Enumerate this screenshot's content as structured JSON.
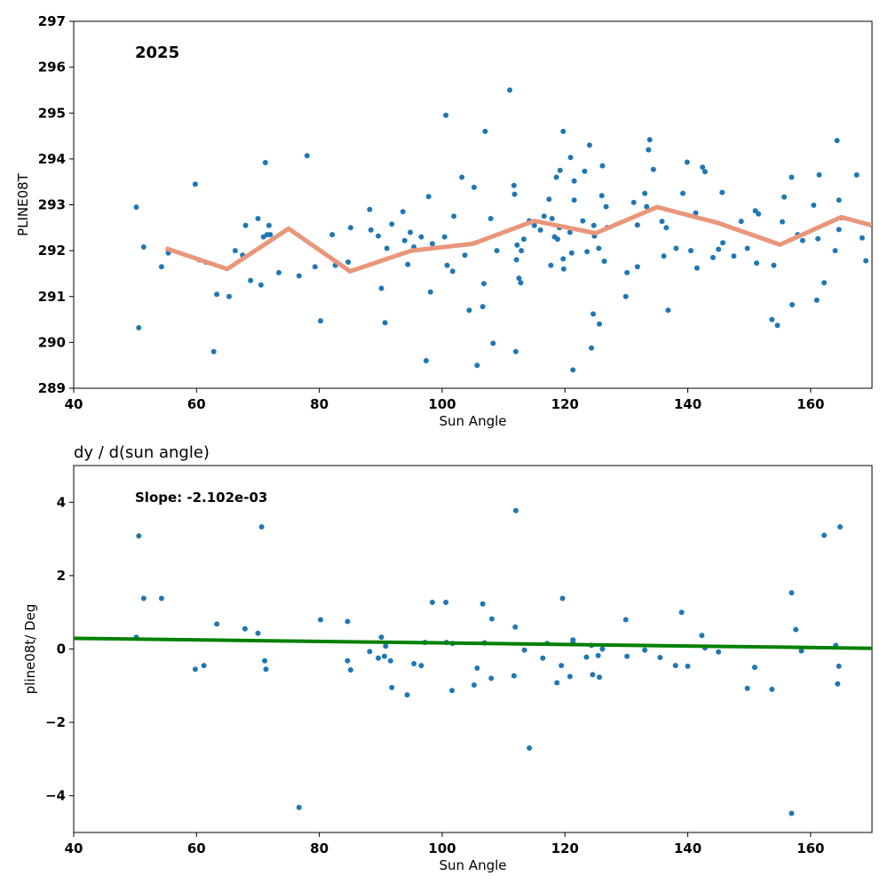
{
  "chart_data": [
    {
      "type": "scatter",
      "title": "",
      "annotation": "2025",
      "xlabel": "Sun Angle",
      "ylabel": "PLINE08T",
      "xlim": [
        40,
        170
      ],
      "ylim": [
        289,
        297
      ],
      "xticks": [
        "40",
        "60",
        "80",
        "100",
        "120",
        "140",
        "160"
      ],
      "yticks": [
        "289",
        "290",
        "291",
        "292",
        "293",
        "294",
        "295",
        "296",
        "297"
      ],
      "grid": false,
      "colors": {
        "points": "#1f77b4",
        "trend": "#e9967a"
      },
      "points": [
        [
          50.2,
          292.95
        ],
        [
          50.6,
          290.32
        ],
        [
          51.4,
          292.08
        ],
        [
          54.3,
          291.65
        ],
        [
          55.4,
          291.95
        ],
        [
          59.8,
          293.45
        ],
        [
          60.4,
          291.8
        ],
        [
          61.5,
          291.75
        ],
        [
          62.8,
          289.8
        ],
        [
          63.3,
          291.05
        ],
        [
          65.3,
          291.0
        ],
        [
          66.3,
          292.0
        ],
        [
          67.5,
          291.9
        ],
        [
          68.0,
          292.55
        ],
        [
          68.8,
          291.35
        ],
        [
          70.0,
          292.7
        ],
        [
          70.5,
          291.25
        ],
        [
          70.9,
          292.3
        ],
        [
          71.2,
          293.92
        ],
        [
          71.5,
          292.35
        ],
        [
          71.8,
          292.55
        ],
        [
          72.0,
          292.35
        ],
        [
          73.4,
          291.52
        ],
        [
          76.7,
          291.45
        ],
        [
          78.0,
          294.07
        ],
        [
          79.3,
          291.65
        ],
        [
          80.2,
          290.47
        ],
        [
          82.1,
          292.35
        ],
        [
          82.6,
          291.68
        ],
        [
          84.7,
          291.75
        ],
        [
          85.1,
          292.5
        ],
        [
          88.2,
          292.9
        ],
        [
          88.4,
          292.45
        ],
        [
          89.6,
          292.32
        ],
        [
          90.1,
          291.18
        ],
        [
          90.7,
          290.43
        ],
        [
          91.0,
          292.05
        ],
        [
          91.8,
          292.58
        ],
        [
          93.6,
          292.85
        ],
        [
          93.9,
          292.22
        ],
        [
          94.4,
          291.7
        ],
        [
          94.8,
          292.4
        ],
        [
          95.4,
          292.08
        ],
        [
          96.6,
          292.3
        ],
        [
          97.4,
          289.6
        ],
        [
          97.8,
          293.18
        ],
        [
          98.1,
          291.1
        ],
        [
          98.4,
          292.15
        ],
        [
          100.4,
          292.3
        ],
        [
          100.6,
          294.95
        ],
        [
          100.8,
          291.68
        ],
        [
          101.7,
          291.55
        ],
        [
          101.9,
          292.75
        ],
        [
          103.2,
          293.6
        ],
        [
          103.7,
          291.9
        ],
        [
          104.4,
          290.7
        ],
        [
          105.2,
          293.38
        ],
        [
          105.7,
          289.5
        ],
        [
          106.6,
          290.78
        ],
        [
          106.8,
          291.28
        ],
        [
          107.0,
          294.6
        ],
        [
          107.9,
          292.7
        ],
        [
          108.3,
          289.98
        ],
        [
          108.9,
          292.0
        ],
        [
          111.0,
          295.5
        ],
        [
          111.7,
          293.42
        ],
        [
          111.8,
          293.23
        ],
        [
          112.0,
          289.8
        ],
        [
          112.2,
          292.12
        ],
        [
          112.1,
          291.8
        ],
        [
          112.5,
          291.4
        ],
        [
          112.8,
          291.3
        ],
        [
          112.9,
          292.0
        ],
        [
          113.3,
          292.25
        ],
        [
          114.2,
          292.65
        ],
        [
          115.0,
          292.55
        ],
        [
          116.0,
          292.45
        ],
        [
          116.6,
          292.75
        ],
        [
          117.4,
          293.12
        ],
        [
          117.7,
          291.68
        ],
        [
          117.9,
          292.7
        ],
        [
          118.3,
          292.3
        ],
        [
          118.6,
          293.6
        ],
        [
          118.8,
          292.25
        ],
        [
          119.1,
          292.5
        ],
        [
          119.2,
          293.75
        ],
        [
          119.7,
          294.6
        ],
        [
          119.7,
          291.82
        ],
        [
          119.8,
          291.6
        ],
        [
          120.8,
          292.4
        ],
        [
          120.9,
          294.03
        ],
        [
          121.1,
          291.95
        ],
        [
          121.3,
          289.4
        ],
        [
          121.5,
          293.1
        ],
        [
          121.5,
          293.52
        ],
        [
          122.9,
          292.65
        ],
        [
          123.2,
          293.73
        ],
        [
          123.6,
          291.98
        ],
        [
          124.0,
          294.3
        ],
        [
          124.3,
          289.88
        ],
        [
          124.6,
          290.62
        ],
        [
          124.7,
          292.55
        ],
        [
          124.8,
          292.32
        ],
        [
          125.5,
          292.05
        ],
        [
          125.6,
          290.4
        ],
        [
          126.0,
          293.2
        ],
        [
          126.1,
          293.85
        ],
        [
          126.4,
          291.77
        ],
        [
          126.7,
          292.96
        ],
        [
          126.9,
          292.5
        ],
        [
          129.9,
          291.0
        ],
        [
          130.1,
          291.52
        ],
        [
          131.2,
          293.05
        ],
        [
          131.8,
          291.65
        ],
        [
          131.8,
          292.56
        ],
        [
          133.0,
          293.25
        ],
        [
          133.3,
          292.96
        ],
        [
          133.6,
          294.2
        ],
        [
          133.8,
          294.42
        ],
        [
          134.4,
          293.77
        ],
        [
          135.8,
          292.64
        ],
        [
          136.1,
          291.88
        ],
        [
          136.5,
          292.5
        ],
        [
          136.8,
          290.7
        ],
        [
          138.1,
          292.05
        ],
        [
          139.2,
          293.25
        ],
        [
          139.9,
          293.93
        ],
        [
          140.5,
          292.0
        ],
        [
          141.3,
          292.82
        ],
        [
          141.5,
          291.62
        ],
        [
          142.4,
          293.82
        ],
        [
          142.8,
          293.72
        ],
        [
          144.1,
          291.85
        ],
        [
          145.0,
          292.03
        ],
        [
          145.6,
          293.27
        ],
        [
          145.7,
          292.17
        ],
        [
          147.5,
          291.88
        ],
        [
          148.7,
          292.64
        ],
        [
          149.7,
          292.05
        ],
        [
          151.0,
          292.87
        ],
        [
          151.2,
          291.73
        ],
        [
          151.5,
          292.8
        ],
        [
          153.7,
          290.5
        ],
        [
          154.0,
          291.68
        ],
        [
          154.6,
          290.37
        ],
        [
          155.4,
          292.63
        ],
        [
          155.7,
          293.17
        ],
        [
          156.9,
          293.6
        ],
        [
          157.0,
          290.82
        ],
        [
          157.9,
          292.35
        ],
        [
          158.7,
          292.22
        ],
        [
          160.5,
          292.99
        ],
        [
          161.0,
          290.92
        ],
        [
          161.2,
          292.26
        ],
        [
          161.4,
          293.65
        ],
        [
          162.2,
          291.3
        ],
        [
          164.0,
          292.0
        ],
        [
          164.3,
          294.4
        ],
        [
          164.6,
          293.1
        ],
        [
          164.6,
          292.46
        ],
        [
          165.0,
          292.72
        ],
        [
          167.5,
          293.65
        ],
        [
          168.4,
          292.28
        ],
        [
          169.0,
          291.78
        ]
      ],
      "trend": [
        [
          55,
          292.05
        ],
        [
          65,
          291.6
        ],
        [
          75,
          292.48
        ],
        [
          85,
          291.55
        ],
        [
          95,
          292.0
        ],
        [
          105,
          292.15
        ],
        [
          115,
          292.65
        ],
        [
          125,
          292.38
        ],
        [
          135,
          292.95
        ],
        [
          145,
          292.6
        ],
        [
          155,
          292.13
        ],
        [
          165,
          292.73
        ],
        [
          170,
          292.55
        ]
      ]
    },
    {
      "type": "scatter",
      "title": "dy / d(sun angle)",
      "annotation": "Slope: -2.102e-03",
      "xlabel": "Sun Angle",
      "ylabel": "pline08t/ Deg",
      "xlim": [
        40,
        170
      ],
      "ylim": [
        -5,
        5
      ],
      "xticks": [
        "40",
        "60",
        "80",
        "100",
        "120",
        "140",
        "160"
      ],
      "yticks": [
        "−4",
        "−2",
        "0",
        "2",
        "4"
      ],
      "ytick_values": [
        -4,
        -2,
        0,
        2,
        4
      ],
      "grid": false,
      "colors": {
        "points": "#1f77b4",
        "fit": "#008000"
      },
      "points": [
        [
          50.2,
          0.32
        ],
        [
          50.6,
          3.08
        ],
        [
          51.4,
          1.38
        ],
        [
          54.3,
          1.38
        ],
        [
          59.8,
          -0.55
        ],
        [
          61.2,
          -0.45
        ],
        [
          63.3,
          0.68
        ],
        [
          67.9,
          0.55
        ],
        [
          70.0,
          0.43
        ],
        [
          70.6,
          3.33
        ],
        [
          71.1,
          -0.32
        ],
        [
          71.3,
          -0.55
        ],
        [
          76.7,
          -4.32
        ],
        [
          80.2,
          0.8
        ],
        [
          84.6,
          0.75
        ],
        [
          84.6,
          -0.32
        ],
        [
          85.1,
          -0.57
        ],
        [
          88.2,
          -0.07
        ],
        [
          89.6,
          -0.25
        ],
        [
          90.1,
          0.32
        ],
        [
          90.6,
          -0.2
        ],
        [
          90.8,
          0.08
        ],
        [
          91.6,
          -0.32
        ],
        [
          91.8,
          -1.05
        ],
        [
          94.3,
          -1.25
        ],
        [
          95.4,
          -0.4
        ],
        [
          96.6,
          -0.45
        ],
        [
          97.2,
          0.18
        ],
        [
          98.4,
          1.27
        ],
        [
          100.6,
          1.27
        ],
        [
          100.7,
          0.18
        ],
        [
          101.6,
          -1.13
        ],
        [
          101.7,
          0.15
        ],
        [
          105.2,
          -0.98
        ],
        [
          105.7,
          -0.52
        ],
        [
          106.6,
          1.23
        ],
        [
          106.9,
          0.17
        ],
        [
          108.0,
          -0.8
        ],
        [
          108.1,
          0.82
        ],
        [
          111.7,
          -0.73
        ],
        [
          111.9,
          0.6
        ],
        [
          112.0,
          3.77
        ],
        [
          113.4,
          -0.03
        ],
        [
          114.2,
          -2.7
        ],
        [
          116.4,
          -0.25
        ],
        [
          117.1,
          0.15
        ],
        [
          118.7,
          -0.92
        ],
        [
          119.4,
          -0.45
        ],
        [
          119.6,
          1.38
        ],
        [
          120.8,
          -0.75
        ],
        [
          121.3,
          0.25
        ],
        [
          121.3,
          0.18
        ],
        [
          123.5,
          -0.22
        ],
        [
          124.3,
          0.1
        ],
        [
          124.5,
          -0.7
        ],
        [
          125.4,
          -0.18
        ],
        [
          125.6,
          -0.77
        ],
        [
          126.1,
          0.0
        ],
        [
          129.9,
          0.8
        ],
        [
          130.1,
          -0.2
        ],
        [
          133.0,
          -0.03
        ],
        [
          135.5,
          -0.23
        ],
        [
          138.0,
          -0.45
        ],
        [
          139.0,
          1.0
        ],
        [
          140.0,
          -0.47
        ],
        [
          142.3,
          0.37
        ],
        [
          142.8,
          0.03
        ],
        [
          145.0,
          -0.08
        ],
        [
          149.7,
          -1.07
        ],
        [
          150.9,
          -0.5
        ],
        [
          153.7,
          -1.1
        ],
        [
          156.9,
          1.53
        ],
        [
          156.9,
          -4.48
        ],
        [
          157.6,
          0.53
        ],
        [
          158.5,
          -0.05
        ],
        [
          162.2,
          3.1
        ],
        [
          164.1,
          0.1
        ],
        [
          164.4,
          -0.95
        ],
        [
          164.6,
          -0.47
        ],
        [
          164.8,
          3.33
        ]
      ],
      "fit": [
        [
          40,
          0.29
        ],
        [
          170,
          0.02
        ]
      ]
    }
  ]
}
